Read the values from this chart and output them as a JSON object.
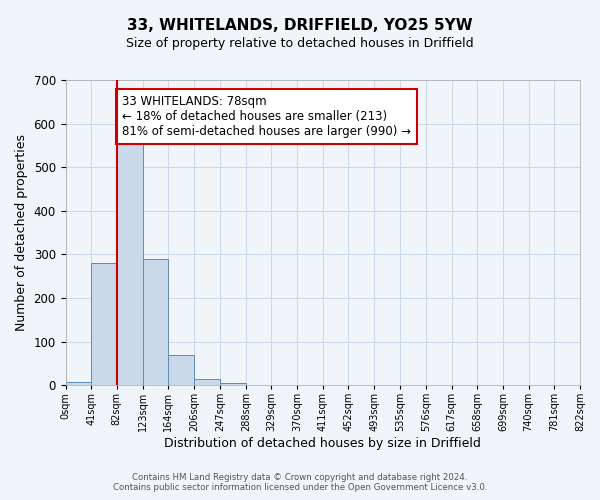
{
  "title": "33, WHITELANDS, DRIFFIELD, YO25 5YW",
  "subtitle": "Size of property relative to detached houses in Driffield",
  "xlabel": "Distribution of detached houses by size in Driffield",
  "ylabel": "Number of detached properties",
  "bar_edges": [
    0,
    41,
    82,
    123,
    164,
    206,
    247,
    288,
    329,
    370,
    411,
    452,
    493,
    535,
    576,
    617,
    658,
    699,
    740,
    781,
    822
  ],
  "bar_heights": [
    7,
    280,
    557,
    290,
    68,
    13,
    5,
    0,
    0,
    0,
    0,
    0,
    0,
    0,
    0,
    0,
    0,
    0,
    0,
    0
  ],
  "bar_color": "#c9d9ea",
  "bar_edgecolor": "#5b8db8",
  "ylim": [
    0,
    700
  ],
  "yticks": [
    0,
    100,
    200,
    300,
    400,
    500,
    600,
    700
  ],
  "xtick_labels": [
    "0sqm",
    "41sqm",
    "82sqm",
    "123sqm",
    "164sqm",
    "206sqm",
    "247sqm",
    "288sqm",
    "329sqm",
    "370sqm",
    "411sqm",
    "452sqm",
    "493sqm",
    "535sqm",
    "576sqm",
    "617sqm",
    "658sqm",
    "699sqm",
    "740sqm",
    "781sqm",
    "822sqm"
  ],
  "vline_x": 82,
  "vline_color": "#cc0000",
  "annotation_text": "33 WHITELANDS: 78sqm\n← 18% of detached houses are smaller (213)\n81% of semi-detached houses are larger (990) →",
  "annotation_box_color": "#cc0000",
  "annotation_fontsize": 8.5,
  "grid_color": "#c8d8e8",
  "background_color": "#f0f5fa",
  "footer_text": "Contains HM Land Registry data © Crown copyright and database right 2024.\nContains public sector information licensed under the Open Government Licence v3.0.",
  "title_fontsize": 11,
  "subtitle_fontsize": 9
}
